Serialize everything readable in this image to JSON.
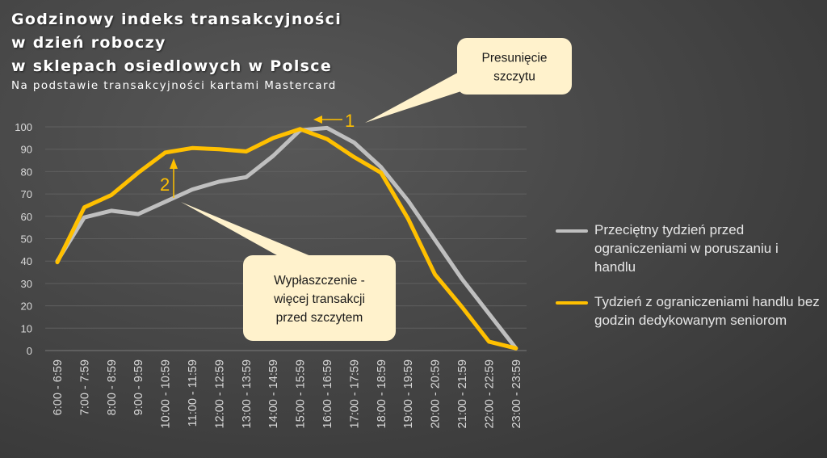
{
  "chart_data": {
    "type": "line",
    "title_lines": [
      "Godzinowy indeks transakcyjności",
      "w dzień roboczy",
      "w sklepach osiedlowych w Polsce"
    ],
    "subtitle": "Na podstawie transakcyjności kartami Mastercard",
    "categories": [
      "6:00 - 6:59",
      "7:00 - 7:59",
      "8:00 - 8:59",
      "9:00 - 9:59",
      "10:00 - 10:59",
      "11:00 - 11:59",
      "12:00 - 12:59",
      "13:00 - 13:59",
      "14:00 - 14:59",
      "15:00 - 15:59",
      "16:00 - 16:59",
      "17:00 - 17:59",
      "18:00 - 18:59",
      "19:00 - 19:59",
      "20:00 - 20:59",
      "21:00 - 21:59",
      "22:00 - 22:59",
      "23:00 - 23:59"
    ],
    "series": [
      {
        "name": "Przeciętny tydzień przed ograniczeniami w poruszaniu i handlu",
        "color": "#BFBFBF",
        "values": [
          40,
          59.5,
          62.5,
          61,
          66.5,
          72,
          75.5,
          77.5,
          87,
          98.5,
          99.5,
          93,
          82,
          67,
          49.5,
          32,
          16.5,
          1
        ]
      },
      {
        "name": "Tydzień z ograniczeniami handlu bez godzin dedykowanym seniorom",
        "color": "#FFC000",
        "values": [
          39.5,
          64,
          69.5,
          79.5,
          88.5,
          90.5,
          90,
          89,
          95,
          99,
          94.5,
          86.5,
          79.5,
          59,
          34,
          19.5,
          4,
          1
        ]
      }
    ],
    "ylim": [
      0,
      100
    ],
    "yticks": [
      "0",
      "10",
      "20",
      "30",
      "40",
      "50",
      "60",
      "70",
      "80",
      "90",
      "100"
    ],
    "grid": true,
    "legend_position": "right",
    "annotations": [
      {
        "label": "1",
        "callout": "Presunięcie\nszczytu"
      },
      {
        "label": "2",
        "callout": "Wypłaszczenie -\nwięcej transakcji\nprzed szczytem"
      }
    ]
  }
}
